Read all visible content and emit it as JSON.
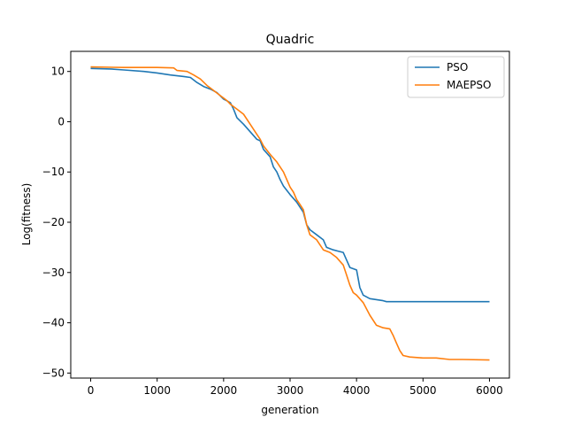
{
  "chart_data": {
    "type": "line",
    "title": "Quadric",
    "xlabel": "generation",
    "ylabel": "Log(fitness)",
    "xlim": [
      -300,
      6300
    ],
    "ylim": [
      -51,
      14
    ],
    "x_ticks": [
      0,
      1000,
      2000,
      3000,
      4000,
      5000,
      6000
    ],
    "x_tick_labels": [
      "0",
      "1000",
      "2000",
      "3000",
      "4000",
      "5000",
      "6000"
    ],
    "y_ticks": [
      10,
      0,
      -10,
      -20,
      -30,
      -40,
      -50
    ],
    "y_tick_labels": [
      "10",
      "0",
      "−10",
      "−20",
      "−30",
      "−40",
      "−50"
    ],
    "grid": false,
    "legend_position": "top-right",
    "series": [
      {
        "name": "PSO",
        "color": "#1f77b4",
        "points": [
          [
            0,
            10.6
          ],
          [
            300,
            10.5
          ],
          [
            500,
            10.3
          ],
          [
            800,
            10.0
          ],
          [
            1000,
            9.7
          ],
          [
            1200,
            9.3
          ],
          [
            1400,
            9.0
          ],
          [
            1500,
            8.8
          ],
          [
            1600,
            7.8
          ],
          [
            1700,
            7.0
          ],
          [
            1800,
            6.5
          ],
          [
            1900,
            5.8
          ],
          [
            2000,
            4.5
          ],
          [
            2100,
            3.8
          ],
          [
            2150,
            2.5
          ],
          [
            2200,
            0.8
          ],
          [
            2300,
            -0.5
          ],
          [
            2400,
            -2.0
          ],
          [
            2500,
            -3.5
          ],
          [
            2550,
            -3.8
          ],
          [
            2600,
            -5.5
          ],
          [
            2700,
            -7.0
          ],
          [
            2750,
            -9.0
          ],
          [
            2800,
            -10.0
          ],
          [
            2850,
            -11.5
          ],
          [
            2900,
            -12.8
          ],
          [
            3000,
            -14.5
          ],
          [
            3100,
            -16.0
          ],
          [
            3200,
            -18.0
          ],
          [
            3250,
            -20.5
          ],
          [
            3300,
            -21.5
          ],
          [
            3400,
            -22.5
          ],
          [
            3500,
            -23.5
          ],
          [
            3550,
            -25.0
          ],
          [
            3650,
            -25.5
          ],
          [
            3800,
            -26.0
          ],
          [
            3900,
            -29.0
          ],
          [
            4000,
            -29.5
          ],
          [
            4050,
            -33.0
          ],
          [
            4100,
            -34.5
          ],
          [
            4200,
            -35.2
          ],
          [
            4300,
            -35.4
          ],
          [
            4400,
            -35.6
          ],
          [
            4450,
            -35.8
          ],
          [
            6000,
            -35.8
          ]
        ]
      },
      {
        "name": "MAEPSO",
        "color": "#ff7f0e",
        "points": [
          [
            0,
            10.9
          ],
          [
            500,
            10.8
          ],
          [
            1000,
            10.8
          ],
          [
            1250,
            10.7
          ],
          [
            1300,
            10.2
          ],
          [
            1450,
            10.0
          ],
          [
            1550,
            9.3
          ],
          [
            1650,
            8.5
          ],
          [
            1750,
            7.2
          ],
          [
            1850,
            6.2
          ],
          [
            1950,
            5.2
          ],
          [
            2050,
            4.2
          ],
          [
            2100,
            3.5
          ],
          [
            2200,
            2.5
          ],
          [
            2300,
            1.5
          ],
          [
            2400,
            -0.5
          ],
          [
            2500,
            -2.5
          ],
          [
            2550,
            -3.5
          ],
          [
            2600,
            -4.8
          ],
          [
            2700,
            -6.5
          ],
          [
            2800,
            -8.0
          ],
          [
            2900,
            -10.0
          ],
          [
            3000,
            -13.0
          ],
          [
            3050,
            -14.0
          ],
          [
            3100,
            -15.5
          ],
          [
            3150,
            -16.5
          ],
          [
            3200,
            -17.5
          ],
          [
            3250,
            -20.5
          ],
          [
            3300,
            -22.5
          ],
          [
            3400,
            -23.5
          ],
          [
            3500,
            -25.5
          ],
          [
            3600,
            -26.0
          ],
          [
            3700,
            -27.0
          ],
          [
            3800,
            -28.5
          ],
          [
            3850,
            -30.5
          ],
          [
            3900,
            -32.5
          ],
          [
            3950,
            -34.0
          ],
          [
            4000,
            -34.5
          ],
          [
            4100,
            -36.0
          ],
          [
            4200,
            -38.5
          ],
          [
            4300,
            -40.5
          ],
          [
            4400,
            -41.0
          ],
          [
            4500,
            -41.2
          ],
          [
            4550,
            -42.5
          ],
          [
            4600,
            -44.0
          ],
          [
            4650,
            -45.5
          ],
          [
            4700,
            -46.5
          ],
          [
            4800,
            -46.8
          ],
          [
            5000,
            -47.0
          ],
          [
            5200,
            -47.0
          ],
          [
            5400,
            -47.3
          ],
          [
            5600,
            -47.3
          ],
          [
            6000,
            -47.4
          ]
        ]
      }
    ]
  }
}
